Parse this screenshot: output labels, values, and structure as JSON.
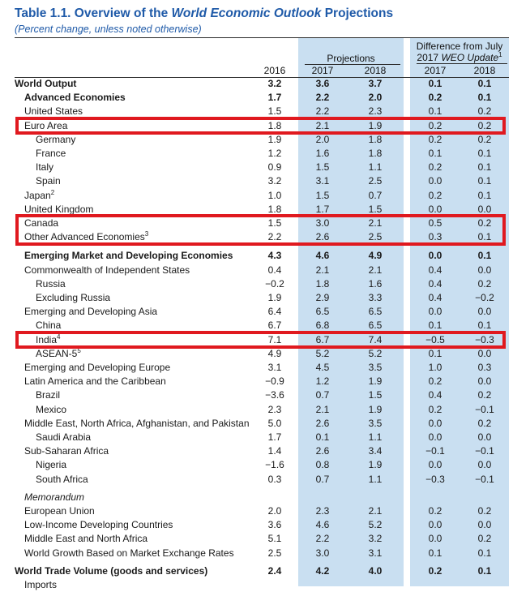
{
  "title_prefix": "Table 1.1. Overview of the ",
  "title_italic": "World Economic Outlook",
  "title_suffix": " Projections",
  "subtitle": "(Percent change, unless noted otherwise)",
  "header": {
    "diff_line1": "Difference from July",
    "diff_line2_prefix": "2017 ",
    "diff_line2_italic": "WEO Update",
    "diff_line2_sup": "1",
    "projections": "Projections",
    "years": [
      "2016",
      "2017",
      "2018",
      "2017",
      "2018"
    ]
  },
  "rows": [
    {
      "label": "World Output",
      "sup": "",
      "indent": 0,
      "style": "bold",
      "values": [
        "3.2",
        "3.6",
        "3.7",
        "0.1",
        "0.1"
      ]
    },
    {
      "label": "Advanced Economies",
      "sup": "",
      "indent": 1,
      "style": "bold",
      "values": [
        "1.7",
        "2.2",
        "2.0",
        "0.2",
        "0.1"
      ]
    },
    {
      "label": "United States",
      "sup": "",
      "indent": 1,
      "style": "",
      "values": [
        "1.5",
        "2.2",
        "2.3",
        "0.1",
        "0.2"
      ]
    },
    {
      "label": "Euro Area",
      "sup": "",
      "indent": 1,
      "style": "",
      "values": [
        "1.8",
        "2.1",
        "1.9",
        "0.2",
        "0.2"
      ]
    },
    {
      "label": "Germany",
      "sup": "",
      "indent": 2,
      "style": "",
      "values": [
        "1.9",
        "2.0",
        "1.8",
        "0.2",
        "0.2"
      ]
    },
    {
      "label": "France",
      "sup": "",
      "indent": 2,
      "style": "",
      "values": [
        "1.2",
        "1.6",
        "1.8",
        "0.1",
        "0.1"
      ]
    },
    {
      "label": "Italy",
      "sup": "",
      "indent": 2,
      "style": "",
      "values": [
        "0.9",
        "1.5",
        "1.1",
        "0.2",
        "0.1"
      ]
    },
    {
      "label": "Spain",
      "sup": "",
      "indent": 2,
      "style": "",
      "values": [
        "3.2",
        "3.1",
        "2.5",
        "0.0",
        "0.1"
      ]
    },
    {
      "label": "Japan",
      "sup": "2",
      "indent": 1,
      "style": "",
      "values": [
        "1.0",
        "1.5",
        "0.7",
        "0.2",
        "0.1"
      ]
    },
    {
      "label": "United Kingdom",
      "sup": "",
      "indent": 1,
      "style": "",
      "values": [
        "1.8",
        "1.7",
        "1.5",
        "0.0",
        "0.0"
      ]
    },
    {
      "label": "Canada",
      "sup": "",
      "indent": 1,
      "style": "",
      "values": [
        "1.5",
        "3.0",
        "2.1",
        "0.5",
        "0.2"
      ]
    },
    {
      "label": "Other Advanced Economies",
      "sup": "3",
      "indent": 1,
      "style": "",
      "values": [
        "2.2",
        "2.6",
        "2.5",
        "0.3",
        "0.1"
      ]
    },
    {
      "label": "Emerging Market and Developing Economies",
      "sup": "",
      "indent": 1,
      "style": "bold",
      "values": [
        "4.3",
        "4.6",
        "4.9",
        "0.0",
        "0.1"
      ]
    },
    {
      "label": "Commonwealth of Independent States",
      "sup": "",
      "indent": 1,
      "style": "",
      "values": [
        "0.4",
        "2.1",
        "2.1",
        "0.4",
        "0.0"
      ]
    },
    {
      "label": "Russia",
      "sup": "",
      "indent": 2,
      "style": "",
      "values": [
        "−0.2",
        "1.8",
        "1.6",
        "0.4",
        "0.2"
      ]
    },
    {
      "label": "Excluding Russia",
      "sup": "",
      "indent": 2,
      "style": "",
      "values": [
        "1.9",
        "2.9",
        "3.3",
        "0.4",
        "−0.2"
      ]
    },
    {
      "label": "Emerging and Developing Asia",
      "sup": "",
      "indent": 1,
      "style": "",
      "values": [
        "6.4",
        "6.5",
        "6.5",
        "0.0",
        "0.0"
      ]
    },
    {
      "label": "China",
      "sup": "",
      "indent": 2,
      "style": "",
      "values": [
        "6.7",
        "6.8",
        "6.5",
        "0.1",
        "0.1"
      ]
    },
    {
      "label": "India",
      "sup": "4",
      "indent": 2,
      "style": "",
      "values": [
        "7.1",
        "6.7",
        "7.4",
        "−0.5",
        "−0.3"
      ]
    },
    {
      "label": "ASEAN-5",
      "sup": "5",
      "indent": 2,
      "style": "",
      "values": [
        "4.9",
        "5.2",
        "5.2",
        "0.1",
        "0.0"
      ]
    },
    {
      "label": "Emerging and Developing Europe",
      "sup": "",
      "indent": 1,
      "style": "",
      "values": [
        "3.1",
        "4.5",
        "3.5",
        "1.0",
        "0.3"
      ]
    },
    {
      "label": "Latin America and the Caribbean",
      "sup": "",
      "indent": 1,
      "style": "",
      "values": [
        "−0.9",
        "1.2",
        "1.9",
        "0.2",
        "0.0"
      ]
    },
    {
      "label": "Brazil",
      "sup": "",
      "indent": 2,
      "style": "",
      "values": [
        "−3.6",
        "0.7",
        "1.5",
        "0.4",
        "0.2"
      ]
    },
    {
      "label": "Mexico",
      "sup": "",
      "indent": 2,
      "style": "",
      "values": [
        "2.3",
        "2.1",
        "1.9",
        "0.2",
        "−0.1"
      ]
    },
    {
      "label": "Middle East, North Africa, Afghanistan, and Pakistan",
      "sup": "",
      "indent": 1,
      "style": "",
      "values": [
        "5.0",
        "2.6",
        "3.5",
        "0.0",
        "0.2"
      ]
    },
    {
      "label": "Saudi Arabia",
      "sup": "",
      "indent": 2,
      "style": "",
      "values": [
        "1.7",
        "0.1",
        "1.1",
        "0.0",
        "0.0"
      ]
    },
    {
      "label": "Sub-Saharan Africa",
      "sup": "",
      "indent": 1,
      "style": "",
      "values": [
        "1.4",
        "2.6",
        "3.4",
        "−0.1",
        "−0.1"
      ]
    },
    {
      "label": "Nigeria",
      "sup": "",
      "indent": 2,
      "style": "",
      "values": [
        "−1.6",
        "0.8",
        "1.9",
        "0.0",
        "0.0"
      ]
    },
    {
      "label": "South Africa",
      "sup": "",
      "indent": 2,
      "style": "",
      "values": [
        "0.3",
        "0.7",
        "1.1",
        "−0.3",
        "−0.1"
      ]
    },
    {
      "label": "Memorandum",
      "sup": "",
      "indent": 1,
      "style": "italic",
      "values": [
        "",
        "",
        "",
        "",
        ""
      ]
    },
    {
      "label": "European Union",
      "sup": "",
      "indent": 1,
      "style": "",
      "values": [
        "2.0",
        "2.3",
        "2.1",
        "0.2",
        "0.2"
      ]
    },
    {
      "label": "Low-Income Developing Countries",
      "sup": "",
      "indent": 1,
      "style": "",
      "values": [
        "3.6",
        "4.6",
        "5.2",
        "0.0",
        "0.0"
      ]
    },
    {
      "label": "Middle East and North Africa",
      "sup": "",
      "indent": 1,
      "style": "",
      "values": [
        "5.1",
        "2.2",
        "3.2",
        "0.0",
        "0.2"
      ]
    },
    {
      "label": "World Growth Based on Market Exchange Rates",
      "sup": "",
      "indent": 1,
      "style": "",
      "values": [
        "2.5",
        "3.0",
        "3.1",
        "0.1",
        "0.1"
      ]
    },
    {
      "label": "World Trade Volume (goods and services)",
      "sup": "",
      "indent": 0,
      "style": "bold",
      "values": [
        "2.4",
        "4.2",
        "4.0",
        "0.2",
        "0.1"
      ]
    },
    {
      "label": "Imports",
      "sup": "",
      "indent": 1,
      "style": "",
      "values": [
        "",
        "",
        "",
        "",
        ""
      ]
    }
  ],
  "highlights": [
    "Euro Area",
    "Canada",
    "Other Advanced Economies",
    "India"
  ],
  "colors": {
    "title": "#1f5aa8",
    "band": "#c9dff1",
    "highlight": "#e0191f"
  }
}
